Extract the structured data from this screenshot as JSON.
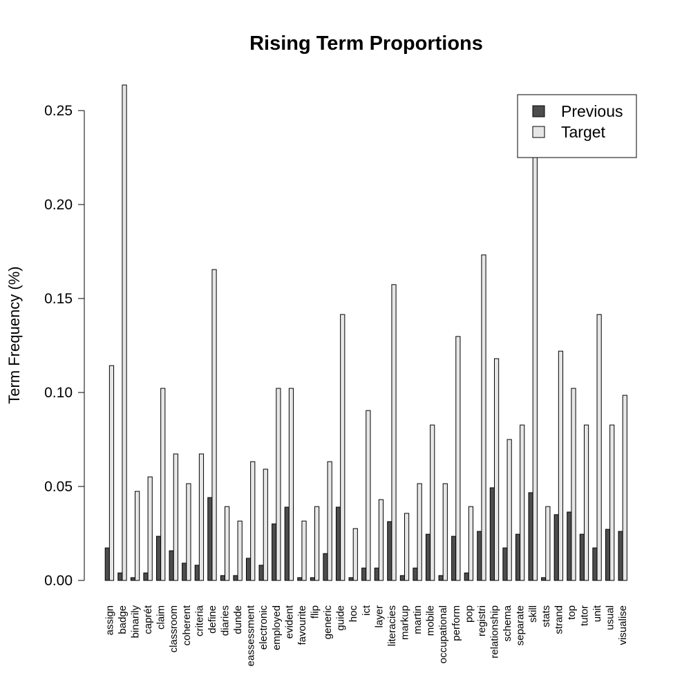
{
  "chart_data": {
    "type": "bar",
    "title": "Rising Term Proportions",
    "y_label": "Term Frequency (%)",
    "categories": [
      "assign",
      "badge",
      "binarily",
      "caprét",
      "claim",
      "classroom",
      "coherent",
      "criteria",
      "define",
      "diaries",
      "dunde",
      "eassessment",
      "electronic",
      "employed",
      "evident",
      "favourite",
      "flip",
      "generic",
      "guide",
      "hoc",
      "ict",
      "layer",
      "literacies",
      "markup",
      "martin",
      "mobile",
      "occupational",
      "perform",
      "pop",
      "registri",
      "relationship",
      "schema",
      "separate",
      "skill",
      "stats",
      "strand",
      "top",
      "tutor",
      "unit",
      "usual",
      "visualise"
    ],
    "series": [
      {
        "name": "Previous",
        "color": "#4d4d4d",
        "values": [
          0.0173,
          0.004,
          0.0015,
          0.004,
          0.0235,
          0.0158,
          0.0092,
          0.0081,
          0.0441,
          0.0026,
          0.0026,
          0.0118,
          0.0081,
          0.0301,
          0.039,
          0.0015,
          0.0015,
          0.0143,
          0.039,
          0.0015,
          0.0066,
          0.0066,
          0.0313,
          0.0026,
          0.0066,
          0.0246,
          0.0026,
          0.0235,
          0.004,
          0.0261,
          0.0493,
          0.0173,
          0.0246,
          0.0467,
          0.0015,
          0.035,
          0.0364,
          0.0246,
          0.0173,
          0.0272,
          0.0261
        ]
      },
      {
        "name": "Target",
        "color": "#e6e6e6",
        "values": [
          0.1143,
          0.2636,
          0.0474,
          0.0551,
          0.1022,
          0.0673,
          0.0515,
          0.0673,
          0.1654,
          0.0393,
          0.0316,
          0.0632,
          0.0592,
          0.1022,
          0.1022,
          0.0316,
          0.0393,
          0.0632,
          0.1415,
          0.0276,
          0.0904,
          0.043,
          0.1574,
          0.0357,
          0.0515,
          0.0827,
          0.0515,
          0.1298,
          0.0393,
          0.1732,
          0.118,
          0.075,
          0.0827,
          0.236,
          0.0393,
          0.122,
          0.1022,
          0.0827,
          0.1415,
          0.0827,
          0.0985
        ]
      }
    ],
    "ylim": [
      0,
      0.25
    ],
    "yticks": [
      {
        "value": 0,
        "label": "0.00"
      },
      {
        "value": 0.05,
        "label": "0.05"
      },
      {
        "value": 0.1,
        "label": "0.10"
      },
      {
        "value": 0.15,
        "label": "0.15"
      },
      {
        "value": 0.2,
        "label": "0.20"
      },
      {
        "value": 0.25,
        "label": "0.25"
      }
    ],
    "legend": "topright"
  }
}
